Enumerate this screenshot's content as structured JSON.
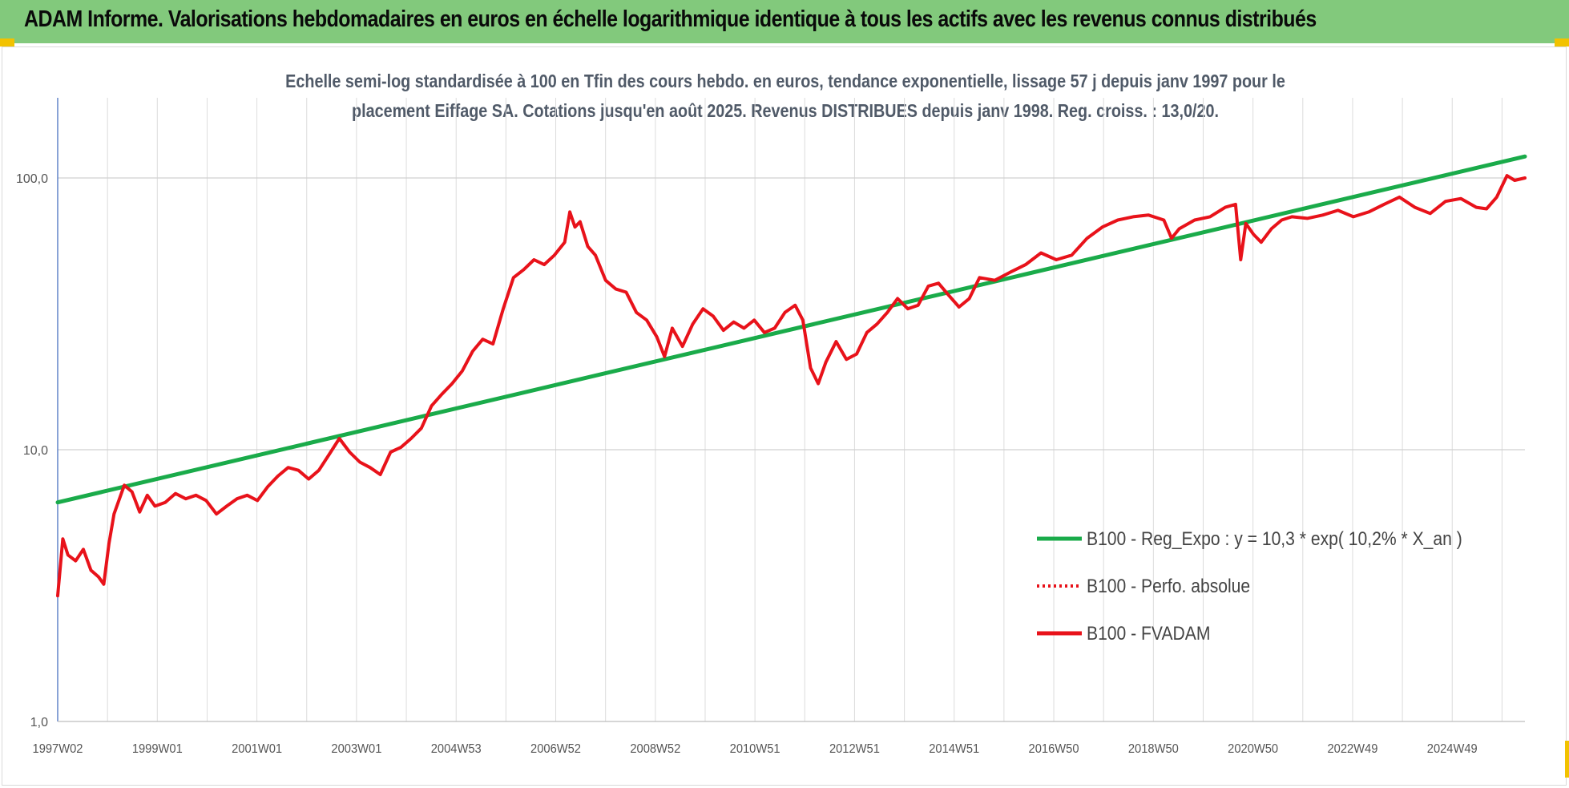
{
  "banner": {
    "title": "ADAM Informe. Valorisations hebdomadaires en euros en échelle logarithmique identique à tous les actifs avec les revenus connus distribués"
  },
  "chart_data": {
    "type": "line",
    "title_line1": "Echelle semi-log standardisée à 100 en Tfin des cours hebdo. en euros, tendance exponentielle, lissage 57 j depuis janv 1997 pour le",
    "title_line2": "placement Eiffage SA. Cotations jusqu'en août 2025. Revenus DISTRIBUES depuis janv 1998.  Reg. croiss. : 13,0/20.",
    "y_scale": "log",
    "ylim": [
      1,
      200
    ],
    "y_ticks": [
      "1,0",
      "10,0",
      "100,0"
    ],
    "x_ticks": [
      "1997W02",
      "1999W01",
      "2001W01",
      "2003W01",
      "2004W53",
      "2006W52",
      "2008W52",
      "2010W51",
      "2012W51",
      "2014W51",
      "2016W50",
      "2018W50",
      "2020W50",
      "2022W49",
      "2024W49"
    ],
    "x_range_years": [
      1997.0,
      2025.65
    ],
    "grid": true,
    "legend_position": "bottom-right",
    "series": [
      {
        "name": "B100 - Reg_Expo : y = 10,3 * exp( 10,2% *  X_an )",
        "color": "#1aab4a",
        "style": "solid",
        "x": [
          1997.0,
          2025.65
        ],
        "y": [
          6.4,
          120
        ]
      },
      {
        "name": "B100 - Perfo. absolue",
        "color": "#e8121a",
        "style": "dotted",
        "x": [],
        "y": []
      },
      {
        "name": "B100 - FVADAM",
        "color": "#e8121a",
        "style": "solid",
        "x": [
          1997.0,
          1997.1,
          1997.2,
          1997.35,
          1997.5,
          1997.65,
          1997.8,
          1997.9,
          1998.0,
          1998.1,
          1998.3,
          1998.45,
          1998.6,
          1998.75,
          1998.9,
          1999.1,
          1999.3,
          1999.5,
          1999.7,
          1999.9,
          2000.1,
          2000.3,
          2000.5,
          2000.7,
          2000.9,
          2001.1,
          2001.3,
          2001.5,
          2001.7,
          2001.9,
          2002.1,
          2002.3,
          2002.5,
          2002.7,
          2002.9,
          2003.1,
          2003.3,
          2003.5,
          2003.7,
          2003.9,
          2004.1,
          2004.3,
          2004.5,
          2004.7,
          2004.9,
          2005.1,
          2005.3,
          2005.5,
          2005.7,
          2005.9,
          2006.1,
          2006.3,
          2006.5,
          2006.7,
          2006.9,
          2007.0,
          2007.1,
          2007.2,
          2007.35,
          2007.5,
          2007.7,
          2007.9,
          2008.1,
          2008.3,
          2008.5,
          2008.7,
          2008.85,
          2009.0,
          2009.2,
          2009.4,
          2009.6,
          2009.8,
          2010.0,
          2010.2,
          2010.4,
          2010.6,
          2010.8,
          2011.0,
          2011.2,
          2011.4,
          2011.55,
          2011.7,
          2011.85,
          2012.0,
          2012.2,
          2012.4,
          2012.6,
          2012.8,
          2013.0,
          2013.2,
          2013.4,
          2013.6,
          2013.8,
          2014.0,
          2014.2,
          2014.4,
          2014.6,
          2014.8,
          2015.0,
          2015.3,
          2015.6,
          2015.9,
          2016.2,
          2016.5,
          2016.8,
          2017.1,
          2017.4,
          2017.7,
          2018.0,
          2018.3,
          2018.6,
          2018.75,
          2018.9,
          2019.2,
          2019.5,
          2019.8,
          2020.0,
          2020.1,
          2020.2,
          2020.35,
          2020.5,
          2020.7,
          2020.9,
          2021.1,
          2021.4,
          2021.7,
          2022.0,
          2022.3,
          2022.6,
          2022.9,
          2023.2,
          2023.5,
          2023.8,
          2024.1,
          2024.4,
          2024.7,
          2024.9,
          2025.1,
          2025.3,
          2025.45,
          2025.65
        ],
        "y": [
          2.9,
          4.7,
          4.1,
          3.9,
          4.3,
          3.6,
          3.4,
          3.2,
          4.5,
          5.8,
          7.4,
          7.0,
          5.9,
          6.8,
          6.2,
          6.4,
          6.9,
          6.6,
          6.8,
          6.5,
          5.8,
          6.2,
          6.6,
          6.8,
          6.5,
          7.3,
          8.0,
          8.6,
          8.4,
          7.8,
          8.4,
          9.6,
          11.0,
          9.8,
          9.0,
          8.6,
          8.1,
          9.8,
          10.2,
          11.0,
          12.0,
          14.5,
          16.0,
          17.5,
          19.5,
          23.0,
          25.5,
          24.5,
          33.0,
          43.0,
          46.0,
          50.0,
          48.0,
          52.0,
          58.0,
          75.0,
          66.0,
          69.0,
          56.0,
          52.0,
          42.0,
          39.0,
          38.0,
          32.0,
          30.0,
          26.0,
          22.0,
          28.0,
          24.0,
          29.0,
          33.0,
          31.0,
          27.5,
          29.5,
          28.0,
          30.0,
          27.0,
          28.0,
          32.0,
          34.0,
          30.0,
          20.0,
          17.5,
          21.0,
          25.0,
          21.5,
          22.5,
          27.0,
          29.0,
          32.0,
          36.0,
          33.0,
          34.0,
          40.0,
          41.0,
          37.0,
          33.5,
          36.0,
          43.0,
          42.0,
          45.0,
          48.0,
          53.0,
          50.0,
          52.0,
          60.0,
          66.0,
          70.0,
          72.0,
          73.0,
          70.0,
          60.0,
          65.0,
          70.0,
          72.0,
          78.0,
          80.0,
          50.0,
          68.0,
          62.0,
          58.0,
          65.0,
          70.0,
          72.0,
          71.0,
          73.0,
          76.0,
          72.0,
          75.0,
          80.0,
          85.0,
          78.0,
          74.0,
          82.0,
          84.0,
          78.0,
          77.0,
          85.0,
          102.0,
          98.0,
          100.0
        ]
      }
    ]
  }
}
